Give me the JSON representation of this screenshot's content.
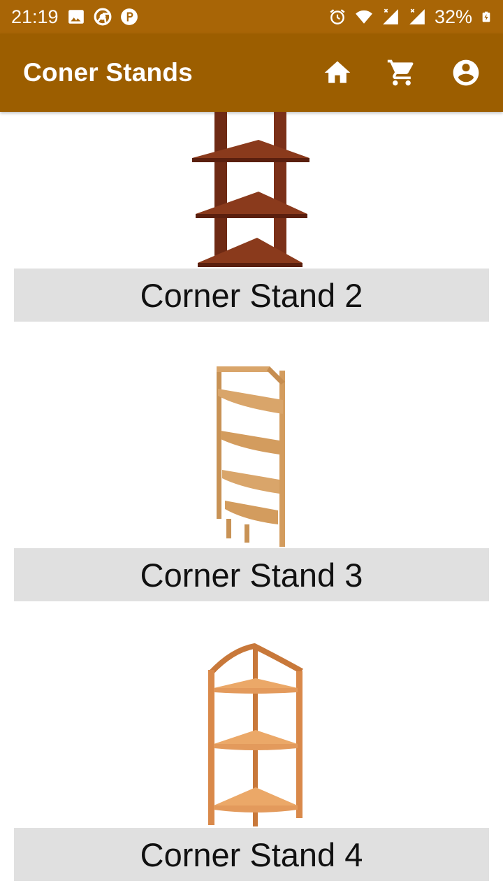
{
  "status_bar": {
    "time": "21:19",
    "battery": "32%",
    "icons": [
      "image-icon",
      "chrome-icon",
      "p-app-icon",
      "alarm-icon",
      "wifi-icon",
      "signal-1-icon",
      "signal-2-icon",
      "battery-charging-icon"
    ]
  },
  "app_bar": {
    "title": "Coner Stands",
    "actions": [
      "home-icon",
      "cart-icon",
      "account-icon"
    ]
  },
  "colors": {
    "status_bar": "#a86506",
    "app_bar": "#9c5e00",
    "label_bg": "#e0e0e0"
  },
  "products": [
    {
      "label": "Corner Stand 2"
    },
    {
      "label": "Corner Stand 3"
    },
    {
      "label": "Corner Stand 4"
    }
  ]
}
